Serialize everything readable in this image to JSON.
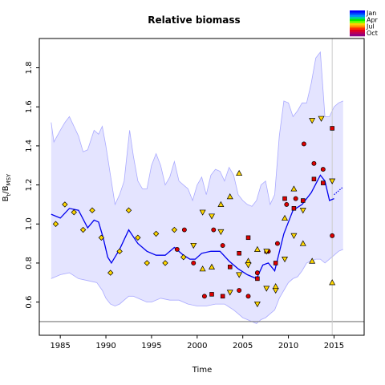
{
  "chart_data": {
    "type": "line",
    "title": "Relative biomass",
    "xlabel": "Time",
    "ylabel_main": "B",
    "ylabel_sub1": "t",
    "ylabel_mid": "/B",
    "ylabel_sub2": "MSY",
    "xlim": [
      1982.7,
      2018.3
    ],
    "ylim": [
      0.43,
      1.95
    ],
    "x_ticks": [
      1985,
      1990,
      1995,
      2000,
      2005,
      2010,
      2015
    ],
    "y_ticks": [
      0.6,
      0.8,
      1.0,
      1.2,
      1.4,
      1.6,
      1.8
    ],
    "grid": false,
    "legend_position": "top-right",
    "legend": [
      {
        "label": "Jan",
        "color": "#0000ff"
      },
      {
        "label": "Apr",
        "color": "#00ee00"
      },
      {
        "label": "Jul",
        "color": "#ffd000"
      },
      {
        "label": "Oct",
        "color": "#b00060"
      }
    ],
    "legend_colors": [
      "#0000ff",
      "#0040ff",
      "#0090ff",
      "#00d0a0",
      "#00ee00",
      "#80ff00",
      "#ffd000",
      "#ff9000",
      "#ff3000",
      "#e00020",
      "#c00050",
      "#900080"
    ],
    "reference_line_y": 0.5,
    "vertical_line_x": 2014.8,
    "series": [
      {
        "role": "median",
        "color": "#0000ee",
        "x": [
          1984,
          1985,
          1986,
          1987,
          1988,
          1988.7,
          1989.2,
          1989.7,
          1990.2,
          1990.6,
          1991.5,
          1992.5,
          1993.5,
          1994.5,
          1995.5,
          1996.5,
          1997.5,
          1998.5,
          1999.2,
          1999.8,
          2000.5,
          2001.5,
          2002.5,
          2003.5,
          2004.5,
          2005.5,
          2006.5,
          2007.2,
          2007.8,
          2008.5,
          2009.5,
          2010.5,
          2011.5,
          2012.5,
          2013.5,
          2014,
          2014.5,
          2015
        ],
        "y": [
          1.05,
          1.03,
          1.08,
          1.07,
          0.98,
          1.02,
          1.01,
          0.93,
          0.83,
          0.8,
          0.87,
          0.97,
          0.9,
          0.86,
          0.84,
          0.84,
          0.88,
          0.84,
          0.82,
          0.82,
          0.85,
          0.86,
          0.86,
          0.81,
          0.77,
          0.74,
          0.72,
          0.79,
          0.8,
          0.76,
          0.95,
          1.07,
          1.1,
          1.16,
          1.25,
          1.22,
          1.12,
          1.13
        ]
      },
      {
        "role": "projection",
        "color": "#0000ee",
        "style": "dotted",
        "x": [
          2015,
          2015.5,
          2016
        ],
        "y": [
          1.15,
          1.17,
          1.19
        ]
      },
      {
        "role": "upper-bound",
        "color": "#aaaaff",
        "x": [
          1984,
          1984.3,
          1985,
          1985.5,
          1986,
          1986.5,
          1987,
          1987.5,
          1988,
          1988.7,
          1989.2,
          1989.6,
          1990,
          1990.5,
          1991,
          1991.5,
          1992,
          1992.6,
          1993,
          1993.5,
          1994,
          1994.5,
          1995,
          1995.5,
          1996,
          1996.5,
          1997,
          1997.5,
          1998,
          1998.5,
          1999,
          1999.5,
          2000,
          2000.5,
          2001,
          2001.5,
          2002,
          2002.5,
          2003,
          2003.5,
          2004,
          2004.5,
          2005,
          2005.5,
          2006,
          2006.5,
          2007,
          2007.5,
          2008,
          2008.5,
          2009,
          2009.5,
          2010,
          2010.5,
          2011,
          2011.5,
          2012,
          2012.5,
          2013,
          2013.5,
          2014,
          2014.5,
          2015,
          2015.5,
          2016
        ],
        "y": [
          1.52,
          1.42,
          1.48,
          1.52,
          1.55,
          1.5,
          1.45,
          1.37,
          1.38,
          1.48,
          1.46,
          1.5,
          1.4,
          1.25,
          1.1,
          1.15,
          1.22,
          1.48,
          1.35,
          1.22,
          1.18,
          1.18,
          1.3,
          1.36,
          1.3,
          1.2,
          1.24,
          1.32,
          1.22,
          1.2,
          1.18,
          1.12,
          1.2,
          1.24,
          1.15,
          1.25,
          1.28,
          1.27,
          1.22,
          1.29,
          1.25,
          1.15,
          1.12,
          1.1,
          1.09,
          1.12,
          1.2,
          1.22,
          1.1,
          1.15,
          1.45,
          1.63,
          1.62,
          1.55,
          1.58,
          1.62,
          1.62,
          1.72,
          1.85,
          1.88,
          1.55,
          1.55,
          1.6,
          1.62,
          1.63
        ]
      },
      {
        "role": "lower-bound",
        "color": "#aaaaff",
        "x": [
          1984,
          1985,
          1986,
          1987,
          1988,
          1989,
          1989.6,
          1990,
          1990.5,
          1991,
          1991.5,
          1992,
          1992.5,
          1993,
          1993.5,
          1994,
          1994.5,
          1995,
          1996,
          1997,
          1998,
          1999,
          2000,
          2001,
          2002,
          2003,
          2004,
          2004.5,
          2005,
          2005.5,
          2006,
          2006.5,
          2007,
          2007.5,
          2008,
          2008.5,
          2009,
          2009.5,
          2010,
          2010.5,
          2011,
          2011.5,
          2012,
          2012.5,
          2013,
          2013.5,
          2014,
          2014.5,
          2015,
          2015.5,
          2016
        ],
        "y": [
          0.72,
          0.74,
          0.75,
          0.72,
          0.71,
          0.7,
          0.66,
          0.62,
          0.59,
          0.58,
          0.59,
          0.61,
          0.63,
          0.63,
          0.62,
          0.61,
          0.6,
          0.6,
          0.62,
          0.61,
          0.61,
          0.59,
          0.58,
          0.58,
          0.59,
          0.59,
          0.56,
          0.54,
          0.52,
          0.51,
          0.5,
          0.49,
          0.51,
          0.52,
          0.54,
          0.56,
          0.62,
          0.66,
          0.7,
          0.72,
          0.73,
          0.76,
          0.8,
          0.81,
          0.82,
          0.82,
          0.8,
          0.82,
          0.84,
          0.86,
          0.87
        ]
      }
    ],
    "observations": [
      {
        "marker": "diamond",
        "color": "#ffd700",
        "x": 1984.5,
        "y": 1.0
      },
      {
        "marker": "diamond",
        "color": "#ffd700",
        "x": 1985.5,
        "y": 1.1
      },
      {
        "marker": "diamond",
        "color": "#ffd700",
        "x": 1986.5,
        "y": 1.06
      },
      {
        "marker": "diamond",
        "color": "#ffd700",
        "x": 1987.5,
        "y": 0.97
      },
      {
        "marker": "diamond",
        "color": "#ffd700",
        "x": 1988.5,
        "y": 1.07
      },
      {
        "marker": "diamond",
        "color": "#ffd700",
        "x": 1989.5,
        "y": 0.93
      },
      {
        "marker": "diamond",
        "color": "#ffd700",
        "x": 1990.5,
        "y": 0.75
      },
      {
        "marker": "diamond",
        "color": "#ffd700",
        "x": 1991.5,
        "y": 0.86
      },
      {
        "marker": "diamond",
        "color": "#ffd700",
        "x": 1992.5,
        "y": 1.07
      },
      {
        "marker": "diamond",
        "color": "#ffd700",
        "x": 1993.5,
        "y": 0.93
      },
      {
        "marker": "diamond",
        "color": "#ffd700",
        "x": 1994.5,
        "y": 0.8
      },
      {
        "marker": "diamond",
        "color": "#ffd700",
        "x": 1995.5,
        "y": 0.95
      },
      {
        "marker": "diamond",
        "color": "#ffd700",
        "x": 1996.5,
        "y": 0.8
      },
      {
        "marker": "diamond",
        "color": "#ffd700",
        "x": 1997.5,
        "y": 0.97
      },
      {
        "marker": "diamond",
        "color": "#ffd700",
        "x": 1998.5,
        "y": 0.83
      },
      {
        "marker": "circle",
        "color": "#dd0000",
        "x": 1997.8,
        "y": 0.87
      },
      {
        "marker": "circle",
        "color": "#dd0000",
        "x": 1998.6,
        "y": 0.97
      },
      {
        "marker": "circle",
        "color": "#dd0000",
        "x": 1999.6,
        "y": 0.8
      },
      {
        "marker": "circle",
        "color": "#dd0000",
        "x": 2000.8,
        "y": 0.63
      },
      {
        "marker": "circle",
        "color": "#dd0000",
        "x": 2001.8,
        "y": 0.97
      },
      {
        "marker": "circle",
        "color": "#dd0000",
        "x": 2002.8,
        "y": 0.89
      },
      {
        "marker": "circle",
        "color": "#dd0000",
        "x": 2004.6,
        "y": 0.66
      },
      {
        "marker": "circle",
        "color": "#dd0000",
        "x": 2005.6,
        "y": 0.63
      },
      {
        "marker": "circle",
        "color": "#dd0000",
        "x": 2006.6,
        "y": 0.75
      },
      {
        "marker": "circle",
        "color": "#dd0000",
        "x": 2007.8,
        "y": 0.86
      },
      {
        "marker": "circle",
        "color": "#dd0000",
        "x": 2008.8,
        "y": 0.9
      },
      {
        "marker": "circle",
        "color": "#dd0000",
        "x": 2009.8,
        "y": 1.1
      },
      {
        "marker": "circle",
        "color": "#dd0000",
        "x": 2010.8,
        "y": 1.13
      },
      {
        "marker": "circle",
        "color": "#dd0000",
        "x": 2011.7,
        "y": 1.41
      },
      {
        "marker": "circle",
        "color": "#dd0000",
        "x": 2012.8,
        "y": 1.31
      },
      {
        "marker": "circle",
        "color": "#dd0000",
        "x": 2013.8,
        "y": 1.28
      },
      {
        "marker": "circle",
        "color": "#dd0000",
        "x": 2014.8,
        "y": 0.94
      },
      {
        "marker": "square",
        "color": "#dd0000",
        "x": 2001.6,
        "y": 0.64
      },
      {
        "marker": "square",
        "color": "#dd0000",
        "x": 2002.8,
        "y": 0.63
      },
      {
        "marker": "square",
        "color": "#dd0000",
        "x": 2003.6,
        "y": 0.78
      },
      {
        "marker": "square",
        "color": "#dd0000",
        "x": 2004.6,
        "y": 0.85
      },
      {
        "marker": "square",
        "color": "#dd0000",
        "x": 2005.6,
        "y": 0.93
      },
      {
        "marker": "square",
        "color": "#dd0000",
        "x": 2006.6,
        "y": 0.72
      },
      {
        "marker": "square",
        "color": "#dd0000",
        "x": 2007.6,
        "y": 0.86
      },
      {
        "marker": "square",
        "color": "#dd0000",
        "x": 2008.6,
        "y": 0.8
      },
      {
        "marker": "square",
        "color": "#dd0000",
        "x": 2009.6,
        "y": 1.13
      },
      {
        "marker": "square",
        "color": "#dd0000",
        "x": 2010.6,
        "y": 1.08
      },
      {
        "marker": "square",
        "color": "#dd0000",
        "x": 2011.6,
        "y": 1.12
      },
      {
        "marker": "square",
        "color": "#dd0000",
        "x": 2012.8,
        "y": 1.23
      },
      {
        "marker": "square",
        "color": "#dd0000",
        "x": 2013.8,
        "y": 1.21
      },
      {
        "marker": "square",
        "color": "#dd0000",
        "x": 2014.8,
        "y": 1.49
      },
      {
        "marker": "triangle-up",
        "color": "#ffd700",
        "x": 2000.6,
        "y": 0.77
      },
      {
        "marker": "triangle-up",
        "color": "#ffd700",
        "x": 2001.6,
        "y": 0.78
      },
      {
        "marker": "triangle-up",
        "color": "#ffd700",
        "x": 2002.6,
        "y": 1.1
      },
      {
        "marker": "triangle-up",
        "color": "#ffd700",
        "x": 2003.6,
        "y": 1.14
      },
      {
        "marker": "triangle-up",
        "color": "#ffd700",
        "x": 2004.6,
        "y": 1.26
      },
      {
        "marker": "triangle-up",
        "color": "#ffd700",
        "x": 2005.6,
        "y": 0.81
      },
      {
        "marker": "triangle-up",
        "color": "#ffd700",
        "x": 2006.6,
        "y": 0.87
      },
      {
        "marker": "triangle-up",
        "color": "#ffd700",
        "x": 2008.6,
        "y": 0.68
      },
      {
        "marker": "triangle-up",
        "color": "#ffd700",
        "x": 2009.6,
        "y": 1.03
      },
      {
        "marker": "triangle-up",
        "color": "#ffd700",
        "x": 2010.6,
        "y": 1.18
      },
      {
        "marker": "triangle-up",
        "color": "#ffd700",
        "x": 2011.6,
        "y": 0.9
      },
      {
        "marker": "triangle-up",
        "color": "#ffd700",
        "x": 2012.6,
        "y": 0.81
      },
      {
        "marker": "triangle-up",
        "color": "#ffd700",
        "x": 2014.8,
        "y": 0.7
      },
      {
        "marker": "triangle-down",
        "color": "#ffd700",
        "x": 1999.6,
        "y": 0.89
      },
      {
        "marker": "triangle-down",
        "color": "#ffd700",
        "x": 2000.6,
        "y": 1.06
      },
      {
        "marker": "triangle-down",
        "color": "#ffd700",
        "x": 2001.6,
        "y": 1.04
      },
      {
        "marker": "triangle-down",
        "color": "#ffd700",
        "x": 2002.6,
        "y": 0.96
      },
      {
        "marker": "triangle-down",
        "color": "#ffd700",
        "x": 2003.6,
        "y": 0.65
      },
      {
        "marker": "triangle-down",
        "color": "#ffd700",
        "x": 2004.6,
        "y": 0.74
      },
      {
        "marker": "triangle-down",
        "color": "#ffd700",
        "x": 2005.6,
        "y": 0.79
      },
      {
        "marker": "triangle-down",
        "color": "#ffd700",
        "x": 2006.6,
        "y": 0.59
      },
      {
        "marker": "triangle-down",
        "color": "#ffd700",
        "x": 2007.6,
        "y": 0.67
      },
      {
        "marker": "triangle-down",
        "color": "#ffd700",
        "x": 2008.6,
        "y": 0.66
      },
      {
        "marker": "triangle-down",
        "color": "#ffd700",
        "x": 2009.6,
        "y": 0.82
      },
      {
        "marker": "triangle-down",
        "color": "#ffd700",
        "x": 2010.6,
        "y": 0.94
      },
      {
        "marker": "triangle-down",
        "color": "#ffd700",
        "x": 2011.6,
        "y": 1.07
      },
      {
        "marker": "triangle-down",
        "color": "#ffd700",
        "x": 2012.6,
        "y": 1.53
      },
      {
        "marker": "triangle-down",
        "color": "#ffd700",
        "x": 2013.6,
        "y": 1.54
      },
      {
        "marker": "triangle-down",
        "color": "#ffd700",
        "x": 2014.8,
        "y": 1.22
      },
      {
        "marker": "triangle-down",
        "color": "#ffd700",
        "x": 2007.6,
        "y": 0.86
      }
    ]
  }
}
